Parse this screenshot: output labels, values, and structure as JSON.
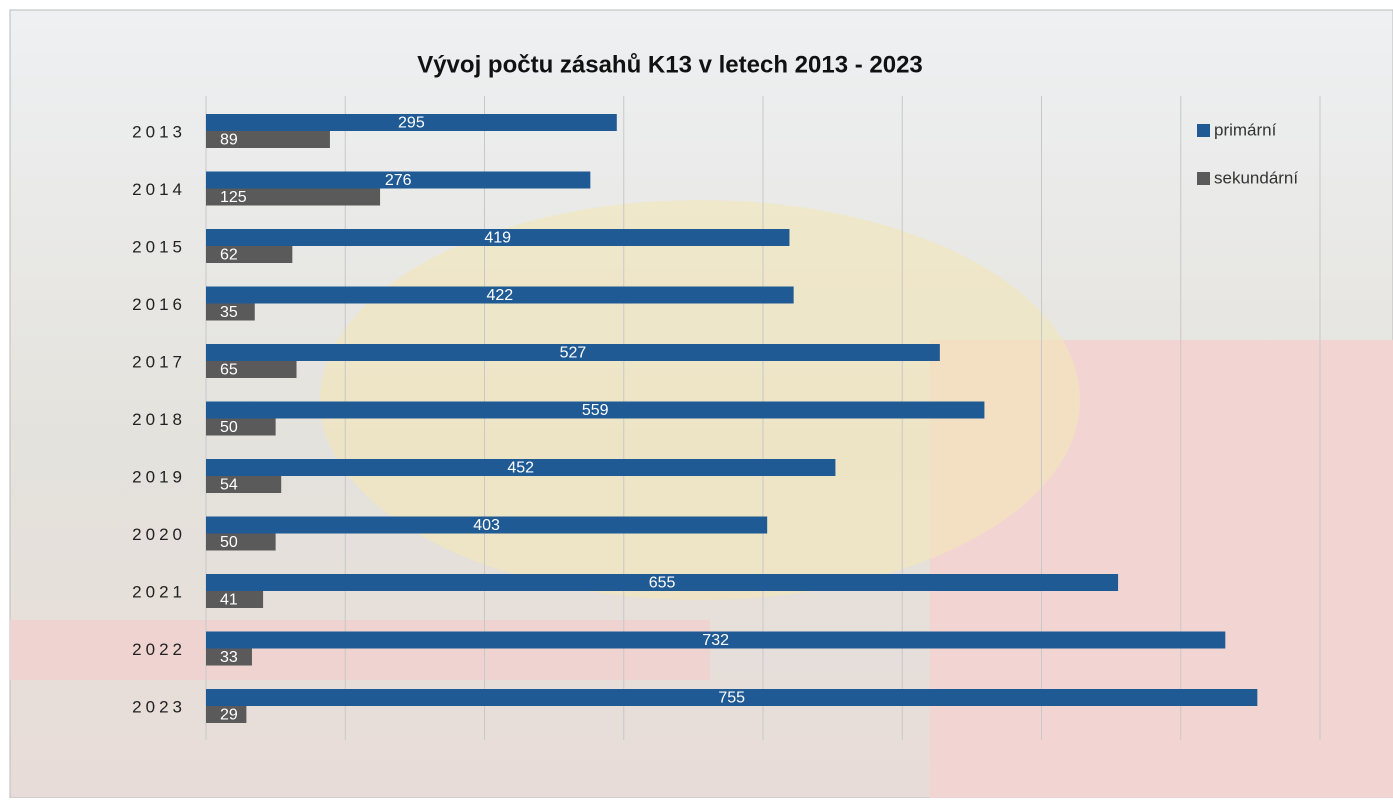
{
  "chart_data": {
    "type": "bar",
    "orientation": "horizontal",
    "title": "Vývoj počtu zásahů K13 v letech 2013 - 2023",
    "categories": [
      "2013",
      "2014",
      "2015",
      "2016",
      "2017",
      "2018",
      "2019",
      "2020",
      "2021",
      "2022",
      "2023"
    ],
    "series": [
      {
        "name": "primární",
        "color": "#1f5a94",
        "values": [
          295,
          276,
          419,
          422,
          527,
          559,
          452,
          403,
          655,
          732,
          755
        ]
      },
      {
        "name": "sekundární",
        "color": "#5a5a5a",
        "values": [
          89,
          125,
          62,
          35,
          65,
          50,
          54,
          50,
          41,
          33,
          29
        ]
      }
    ],
    "xlim": [
      0,
      800
    ],
    "xticks": [
      0,
      100,
      200,
      300,
      400,
      500,
      600,
      700,
      800
    ],
    "grid": true,
    "legend": "top-right"
  }
}
